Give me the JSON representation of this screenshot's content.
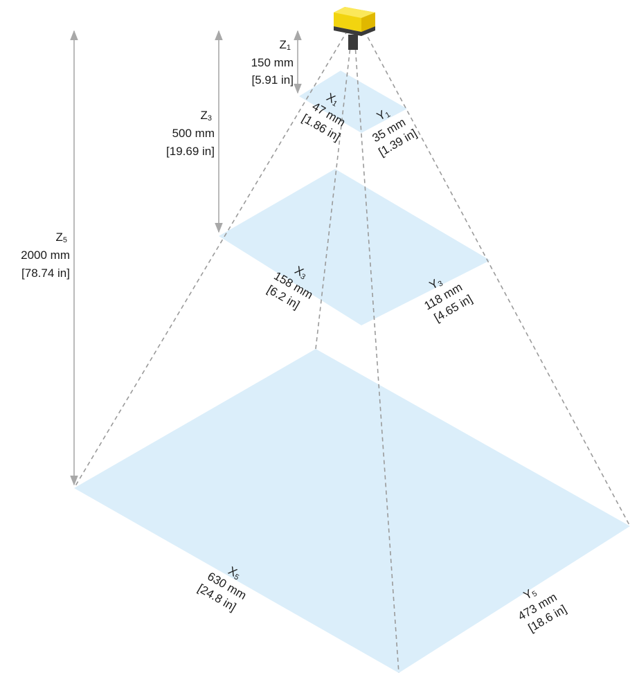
{
  "colors": {
    "plane_fill": "#dbeefa",
    "dashed_line": "#9a9a9a",
    "dimension_arrow": "#a8a8a8",
    "sensor_yellow": "#f2d40f",
    "sensor_dark": "#3a3a3a"
  },
  "icons": {
    "sensor": "camera-sensor-icon"
  },
  "z_dimensions": [
    {
      "symbol": "Z",
      "sub": "1",
      "mm": "150 mm",
      "inch": "[5.91 in]"
    },
    {
      "symbol": "Z",
      "sub": "3",
      "mm": "500 mm",
      "inch": "[19.69 in]"
    },
    {
      "symbol": "Z",
      "sub": "5",
      "mm": "2000 mm",
      "inch": "[78.74 in]"
    }
  ],
  "planes": [
    {
      "x": {
        "symbol": "X",
        "sub": "1",
        "mm": "47 mm",
        "inch": "[1.86 in]"
      },
      "y": {
        "symbol": "Y",
        "sub": "1",
        "mm": "35 mm",
        "inch": "[1.39 in]"
      }
    },
    {
      "x": {
        "symbol": "X",
        "sub": "3",
        "mm": "158 mm",
        "inch": "[6.2 in]"
      },
      "y": {
        "symbol": "Y",
        "sub": "3",
        "mm": "118 mm",
        "inch": "[4.65 in]"
      }
    },
    {
      "x": {
        "symbol": "X",
        "sub": "5",
        "mm": "630 mm",
        "inch": "[24.8 in]"
      },
      "y": {
        "symbol": "Y",
        "sub": "5",
        "mm": "473 mm",
        "inch": "[18.6 in]"
      }
    }
  ]
}
